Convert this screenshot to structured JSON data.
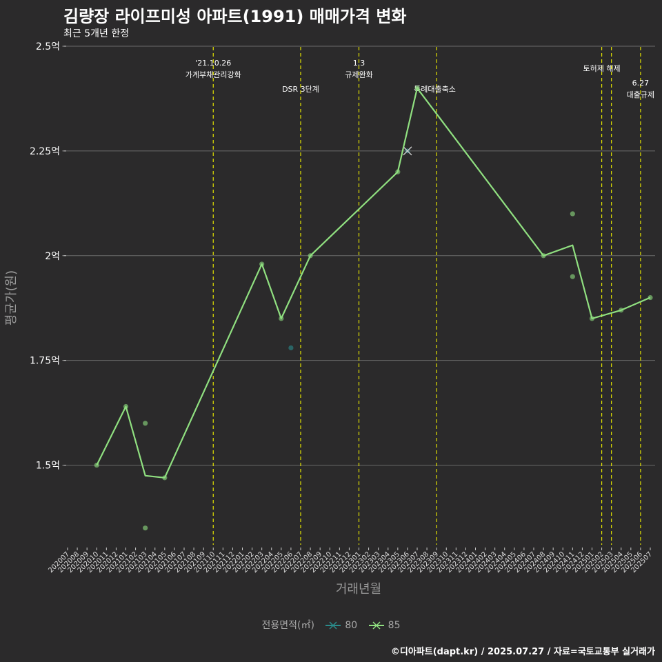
{
  "header": {
    "title": "김량장 라이프미성 아파트(1991) 매매가격 변화",
    "subtitle": "최근 5개년 한정"
  },
  "legend": {
    "title": "전용면적(㎡)",
    "items": [
      {
        "label": "80",
        "color": "#2a8c8c"
      },
      {
        "label": "85",
        "color": "#90e080"
      }
    ]
  },
  "caption": "©디아파트(dapt.kr) / 2025.07.27 / 자료=국토교통부 실거래가",
  "chart_data": {
    "type": "line",
    "title": "김량장 라이프미성 아파트(1991) 매매가격 변화",
    "xlabel": "거래년월",
    "ylabel": "평균가(원)",
    "ylim": [
      1.31,
      2.5
    ],
    "y_ticks": [
      {
        "value": 1.5,
        "label": "1.5억"
      },
      {
        "value": 1.75,
        "label": "1.75억"
      },
      {
        "value": 2.0,
        "label": "2억"
      },
      {
        "value": 2.25,
        "label": "2.25억"
      },
      {
        "value": 2.5,
        "label": "2.5억"
      }
    ],
    "categories": [
      "202007",
      "202008",
      "202009",
      "202010",
      "202011",
      "202012",
      "202101",
      "202102",
      "202103",
      "202104",
      "202105",
      "202106",
      "202107",
      "202108",
      "202109",
      "202110",
      "202111",
      "202112",
      "202201",
      "202202",
      "202203",
      "202204",
      "202205",
      "202206",
      "202207",
      "202208",
      "202209",
      "202210",
      "202211",
      "202212",
      "202301",
      "202302",
      "202303",
      "202304",
      "202305",
      "202306",
      "202307",
      "202308",
      "202309",
      "202310",
      "202311",
      "202312",
      "202401",
      "202402",
      "202403",
      "202404",
      "202405",
      "202406",
      "202407",
      "202408",
      "202409",
      "202410",
      "202411",
      "202412",
      "202501",
      "202502",
      "202503",
      "202504",
      "202505",
      "202506",
      "202507"
    ],
    "series": [
      {
        "name": "80",
        "color": "#2a8c8c",
        "points": [
          {
            "x": "202306",
            "y": 2.25
          }
        ],
        "scatter": [
          {
            "x": "202206",
            "y": 1.78
          },
          {
            "x": "202306",
            "y": 2.25
          }
        ]
      },
      {
        "name": "85",
        "color": "#90e080",
        "points": [
          {
            "x": "202010",
            "y": 1.5
          },
          {
            "x": "202101",
            "y": 1.64
          },
          {
            "x": "202103",
            "y": 1.475
          },
          {
            "x": "202105",
            "y": 1.47
          },
          {
            "x": "202203",
            "y": 1.98
          },
          {
            "x": "202205",
            "y": 1.85
          },
          {
            "x": "202208",
            "y": 2.0
          },
          {
            "x": "202305",
            "y": 2.2
          },
          {
            "x": "202307",
            "y": 2.4
          },
          {
            "x": "202408",
            "y": 2.0
          },
          {
            "x": "202411",
            "y": 2.025
          },
          {
            "x": "202501",
            "y": 1.85
          },
          {
            "x": "202504",
            "y": 1.87
          },
          {
            "x": "202507",
            "y": 1.9
          }
        ],
        "scatter": [
          {
            "x": "202010",
            "y": 1.5
          },
          {
            "x": "202101",
            "y": 1.64
          },
          {
            "x": "202103",
            "y": 1.6
          },
          {
            "x": "202103",
            "y": 1.35
          },
          {
            "x": "202105",
            "y": 1.47
          },
          {
            "x": "202203",
            "y": 1.98
          },
          {
            "x": "202205",
            "y": 1.85
          },
          {
            "x": "202208",
            "y": 2.0
          },
          {
            "x": "202305",
            "y": 2.2
          },
          {
            "x": "202307",
            "y": 2.4
          },
          {
            "x": "202408",
            "y": 2.0
          },
          {
            "x": "202411",
            "y": 2.1
          },
          {
            "x": "202411",
            "y": 1.95
          },
          {
            "x": "202501",
            "y": 1.85
          },
          {
            "x": "202504",
            "y": 1.87
          },
          {
            "x": "202507",
            "y": 1.9
          }
        ]
      }
    ],
    "annotations": [
      {
        "x": "202110",
        "lines": [
          "'21.10.26",
          "가계부채관리강화"
        ]
      },
      {
        "x": "202207",
        "lines": [
          "DSR 3단계"
        ]
      },
      {
        "x": "202301",
        "lines": [
          "1.3",
          "규제완화"
        ]
      },
      {
        "x": "202309",
        "lines": [
          "특례대출축소"
        ]
      },
      {
        "x": "202502",
        "lines": [
          "토허제 해제"
        ]
      },
      {
        "x": "202503",
        "lines": []
      },
      {
        "x": "202506",
        "lines": [
          "6.27",
          "대출규제"
        ]
      }
    ]
  }
}
